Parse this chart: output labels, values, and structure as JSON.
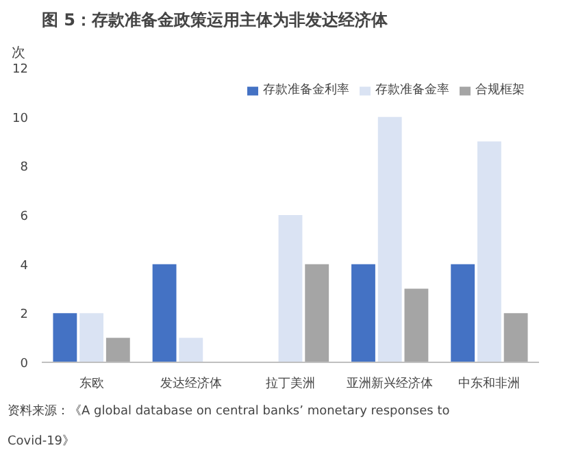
{
  "chart_data": {
    "type": "bar",
    "title": "图 5：存款准备金政策运用主体为非发达经济体",
    "ylabel": "次",
    "categories": [
      "东欧",
      "发达经济体",
      "拉丁美洲",
      "亚洲新兴经济体",
      "中东和非洲"
    ],
    "series": [
      {
        "name": "存款准备金利率",
        "color": "#4472c4",
        "values": [
          2,
          4,
          0,
          4,
          4
        ]
      },
      {
        "name": "存款准备金率",
        "color": "#dae3f3",
        "values": [
          2,
          1,
          6,
          10,
          9
        ]
      },
      {
        "name": "合规框架",
        "color": "#a5a5a5",
        "values": [
          1,
          0,
          4,
          3,
          2
        ]
      }
    ],
    "ylim": [
      0,
      12
    ],
    "yticks": [
      0,
      2,
      4,
      6,
      8,
      10,
      12
    ],
    "grid": false,
    "legend": "top",
    "annotations": [
      "资料来源：《A global database on central banks’ monetary responses to Covid-19》"
    ]
  }
}
